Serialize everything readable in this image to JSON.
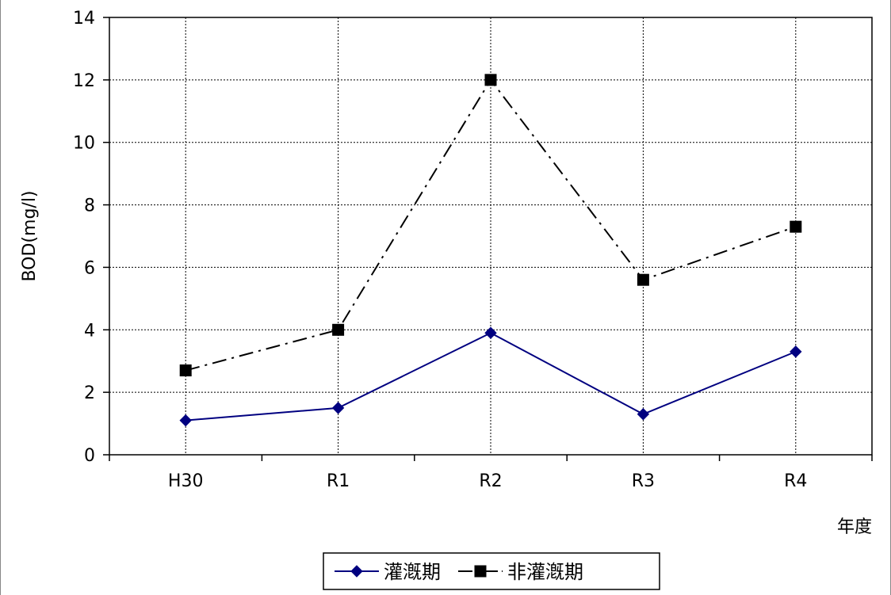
{
  "chart_data": {
    "type": "line",
    "categories": [
      "H30",
      "R1",
      "R2",
      "R3",
      "R4"
    ],
    "series": [
      {
        "name": "灌漑期",
        "values": [
          1.1,
          1.5,
          3.9,
          1.3,
          3.3
        ],
        "color": "#000080",
        "marker": "diamond",
        "line_style": "solid"
      },
      {
        "name": "非灌漑期",
        "values": [
          2.7,
          4.0,
          12.0,
          5.6,
          7.3
        ],
        "color": "#000000",
        "marker": "square",
        "line_style": "dash-dot"
      }
    ],
    "xlabel": "年度",
    "ylabel": "BOD(mg/l)",
    "ylim": [
      0,
      14
    ],
    "yticks": [
      0,
      2,
      4,
      6,
      8,
      10,
      12,
      14
    ],
    "grid": true,
    "legend_position": "bottom-center"
  }
}
